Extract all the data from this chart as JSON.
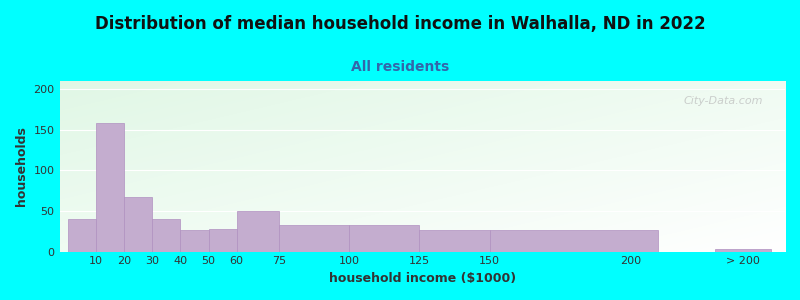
{
  "title": "Distribution of median household income in Walhalla, ND in 2022",
  "subtitle": "All residents",
  "xlabel": "household income ($1000)",
  "ylabel": "households",
  "background_outer": "#00FFFF",
  "bar_color": "#C4ADCF",
  "bar_edge_color": "#B090C0",
  "ylim": [
    0,
    210
  ],
  "yticks": [
    0,
    50,
    100,
    150,
    200
  ],
  "watermark": "City-Data.com",
  "title_fontsize": 12,
  "subtitle_fontsize": 10,
  "axis_label_fontsize": 9,
  "tick_fontsize": 8,
  "left_edges": [
    0,
    10,
    20,
    30,
    40,
    50,
    60,
    75,
    100,
    125,
    150,
    230
  ],
  "right_edges": [
    10,
    20,
    30,
    40,
    50,
    60,
    75,
    100,
    125,
    150,
    210,
    250
  ],
  "values": [
    40,
    158,
    67,
    40,
    26,
    28,
    50,
    33,
    33,
    27,
    27,
    3
  ],
  "xtick_positions": [
    10,
    20,
    30,
    40,
    50,
    60,
    75,
    100,
    125,
    150,
    200,
    240
  ],
  "xtick_labels": [
    "10",
    "20",
    "30",
    "40",
    "50",
    "60",
    "75",
    "100",
    "125",
    "150",
    "200",
    "> 200"
  ],
  "subtitle_color": "#3366AA",
  "title_color": "#111111",
  "label_color": "#333333"
}
